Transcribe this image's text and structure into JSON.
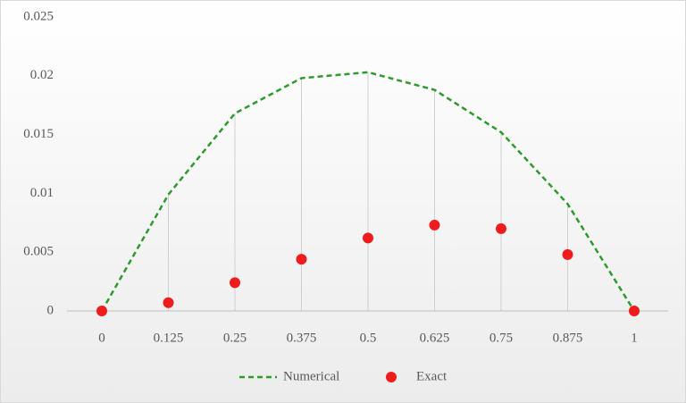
{
  "chart_data": {
    "type": "line",
    "x": [
      0,
      0.125,
      0.25,
      0.375,
      0.5,
      0.625,
      0.75,
      0.875,
      1
    ],
    "xlim": [
      0,
      1
    ],
    "xticks": [
      0,
      0.125,
      0.25,
      0.375,
      0.5,
      0.625,
      0.75,
      0.875,
      1
    ],
    "ylim": [
      0,
      0.025
    ],
    "yticks": [
      0,
      0.005,
      0.01,
      0.015,
      0.02,
      0.025
    ],
    "drop_lines": true,
    "legend": "bottom",
    "series": [
      {
        "name": "Numerical",
        "color": "#2e9a2e",
        "mode": "dashed-line",
        "values": [
          0,
          0.0099,
          0.0168,
          0.0198,
          0.0203,
          0.0188,
          0.0152,
          0.0091,
          0
        ]
      },
      {
        "name": "Exact",
        "color": "#ee1c1c",
        "mode": "markers",
        "values": [
          0,
          0.0007,
          0.0024,
          0.0044,
          0.0062,
          0.0073,
          0.007,
          0.0048,
          0
        ]
      }
    ]
  }
}
